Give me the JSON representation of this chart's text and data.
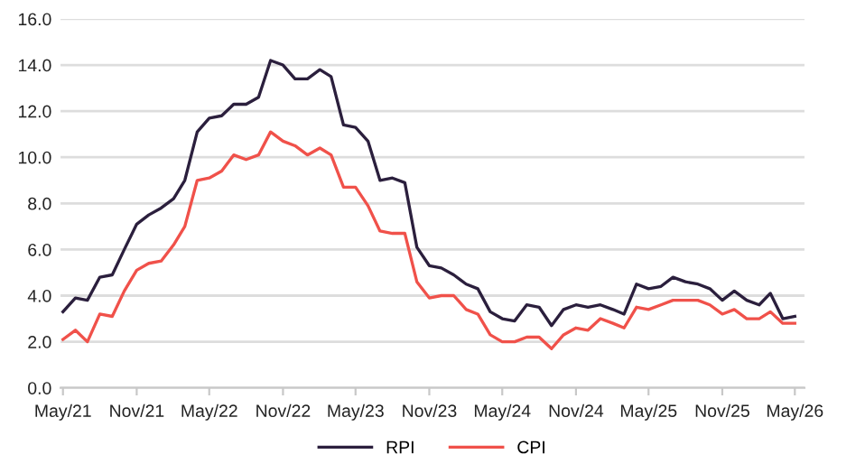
{
  "chart_data": {
    "type": "line",
    "x": [
      "2021-05",
      "2021-06",
      "2021-07",
      "2021-08",
      "2021-09",
      "2021-10",
      "2021-11",
      "2021-12",
      "2022-01",
      "2022-02",
      "2022-03",
      "2022-04",
      "2022-05",
      "2022-06",
      "2022-07",
      "2022-08",
      "2022-09",
      "2022-10",
      "2022-11",
      "2022-12",
      "2023-01",
      "2023-02",
      "2023-03",
      "2023-04",
      "2023-05",
      "2023-06",
      "2023-07",
      "2023-08",
      "2023-09",
      "2023-10",
      "2023-11",
      "2023-12",
      "2024-01",
      "2024-02",
      "2024-03",
      "2024-04",
      "2024-05",
      "2024-06",
      "2024-07",
      "2024-08",
      "2024-09",
      "2024-10",
      "2024-11",
      "2024-12",
      "2025-01",
      "2025-02",
      "2025-03",
      "2025-04",
      "2025-05",
      "2025-06",
      "2025-07",
      "2025-08",
      "2025-09",
      "2025-10",
      "2025-11",
      "2025-12",
      "2026-01",
      "2026-02",
      "2026-03",
      "2026-04",
      "2026-05"
    ],
    "series": [
      {
        "name": "RPI",
        "color": "#2b1f3d",
        "values": [
          3.3,
          3.9,
          3.8,
          4.8,
          4.9,
          6.0,
          7.1,
          7.5,
          7.8,
          8.2,
          9.0,
          11.1,
          11.7,
          11.8,
          12.3,
          12.3,
          12.6,
          14.2,
          14.0,
          13.4,
          13.4,
          13.8,
          13.5,
          11.4,
          11.3,
          10.7,
          9.0,
          9.1,
          8.9,
          6.1,
          5.3,
          5.2,
          4.9,
          4.5,
          4.3,
          3.3,
          3.0,
          2.9,
          3.6,
          3.5,
          2.7,
          3.4,
          3.6,
          3.5,
          3.6,
          3.4,
          3.2,
          4.5,
          4.3,
          4.4,
          4.8,
          4.6,
          4.5,
          4.3,
          3.8,
          4.2,
          3.8,
          3.6,
          4.1,
          3.0,
          3.1
        ]
      },
      {
        "name": "CPI",
        "color": "#f0514a",
        "values": [
          2.1,
          2.5,
          2.0,
          3.2,
          3.1,
          4.2,
          5.1,
          5.4,
          5.5,
          6.2,
          7.0,
          9.0,
          9.1,
          9.4,
          10.1,
          9.9,
          10.1,
          11.1,
          10.7,
          10.5,
          10.1,
          10.4,
          10.1,
          8.7,
          8.7,
          7.9,
          6.8,
          6.7,
          6.7,
          4.6,
          3.9,
          4.0,
          4.0,
          3.4,
          3.2,
          2.3,
          2.0,
          2.0,
          2.2,
          2.2,
          1.7,
          2.3,
          2.6,
          2.5,
          3.0,
          2.8,
          2.6,
          3.5,
          3.4,
          3.6,
          3.8,
          3.8,
          3.8,
          3.6,
          3.2,
          3.4,
          3.0,
          3.0,
          3.3,
          2.8,
          2.8
        ]
      }
    ],
    "xlim": [
      "2021-04-25",
      "2026-05-25"
    ],
    "xticks": [
      {
        "value": "2021-05",
        "label": "May/21"
      },
      {
        "value": "2021-11",
        "label": "Nov/21"
      },
      {
        "value": "2022-05",
        "label": "May/22"
      },
      {
        "value": "2022-11",
        "label": "Nov/22"
      },
      {
        "value": "2023-05",
        "label": "May/23"
      },
      {
        "value": "2023-11",
        "label": "Nov/23"
      },
      {
        "value": "2024-05",
        "label": "May/24"
      },
      {
        "value": "2024-11",
        "label": "Nov/24"
      },
      {
        "value": "2025-05",
        "label": "May/25"
      },
      {
        "value": "2025-11",
        "label": "Nov/25"
      },
      {
        "value": "2026-05",
        "label": "May/26"
      }
    ],
    "ylim": [
      0,
      16
    ],
    "yticks": [
      {
        "value": 0,
        "label": "0.0"
      },
      {
        "value": 2,
        "label": "2.0"
      },
      {
        "value": 4,
        "label": "4.0"
      },
      {
        "value": 6,
        "label": "6.0"
      },
      {
        "value": 8,
        "label": "8.0"
      },
      {
        "value": 10,
        "label": "10.0"
      },
      {
        "value": 12,
        "label": "12.0"
      },
      {
        "value": 14,
        "label": "14.0"
      },
      {
        "value": 16,
        "label": "16.0"
      }
    ],
    "grid": "y",
    "legend": "bottom",
    "marker": "none",
    "line_style": "solid"
  }
}
